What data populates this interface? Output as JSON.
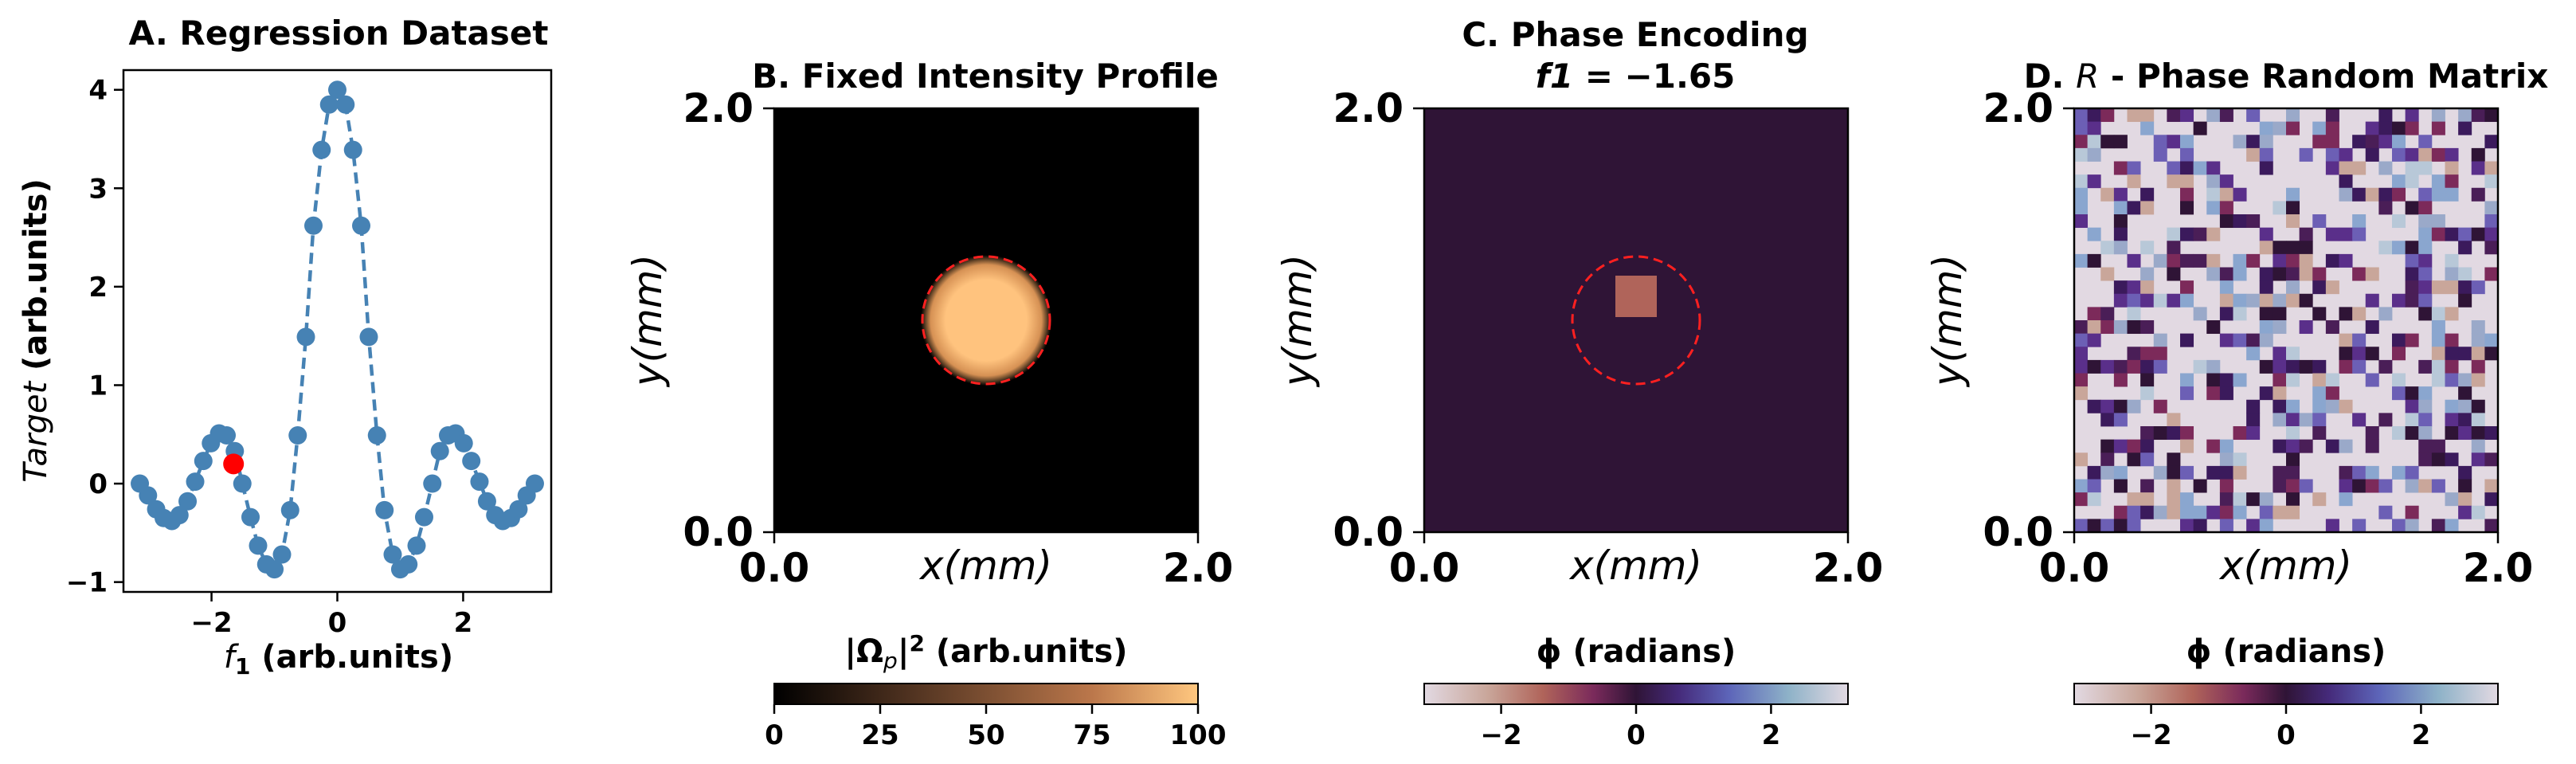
{
  "chart_data": [
    {
      "type": "line",
      "panel": "A",
      "title": "A. Regression Dataset",
      "xlabel_var": "f",
      "xlabel_sub": "1",
      "xlabel_rest": " (arb.units)",
      "ylabel_var": "Target",
      "ylabel_rest": " (arb.units)",
      "xlim": [
        -3.4,
        3.4
      ],
      "ylim": [
        -1.1,
        4.2
      ],
      "xticks": [
        -2,
        0,
        2
      ],
      "yticks": [
        -1,
        0,
        1,
        2,
        3,
        4
      ],
      "series": [
        {
          "name": "target",
          "color": "#4682b4",
          "style": "dashed-with-markers",
          "x": [
            -3.14,
            -3.01,
            -2.88,
            -2.76,
            -2.63,
            -2.51,
            -2.38,
            -2.26,
            -2.13,
            -2.01,
            -1.88,
            -1.76,
            -1.63,
            -1.51,
            -1.38,
            -1.26,
            -1.13,
            -1.0,
            -0.88,
            -0.75,
            -0.63,
            -0.5,
            -0.38,
            -0.25,
            -0.13,
            0.0,
            0.13,
            0.25,
            0.38,
            0.5,
            0.63,
            0.75,
            0.88,
            1.0,
            1.13,
            1.26,
            1.38,
            1.51,
            1.63,
            1.76,
            1.88,
            2.01,
            2.13,
            2.26,
            2.38,
            2.51,
            2.63,
            2.76,
            2.88,
            3.01,
            3.14
          ],
          "y": [
            0.0,
            -0.12,
            -0.26,
            -0.35,
            -0.38,
            -0.32,
            -0.18,
            0.02,
            0.23,
            0.41,
            0.51,
            0.49,
            0.33,
            0.0,
            -0.34,
            -0.63,
            -0.82,
            -0.87,
            -0.72,
            -0.27,
            0.49,
            1.49,
            2.62,
            3.39,
            3.85,
            4.0,
            3.85,
            3.39,
            2.62,
            1.49,
            0.49,
            -0.27,
            -0.72,
            -0.87,
            -0.82,
            -0.63,
            -0.34,
            0.0,
            0.33,
            0.49,
            0.51,
            0.41,
            0.23,
            0.02,
            -0.18,
            -0.32,
            -0.38,
            -0.35,
            -0.26,
            -0.12,
            0.0
          ]
        },
        {
          "name": "highlighted sample",
          "color": "#ff0000",
          "x": [
            -1.65
          ],
          "y": [
            0.2
          ]
        }
      ]
    },
    {
      "type": "heatmap",
      "panel": "B",
      "title": "B. Fixed Intensity Profile",
      "xlabel": "x(mm)",
      "ylabel": "y(mm)",
      "xlim": [
        0.0,
        2.0
      ],
      "ylim": [
        0.0,
        2.0
      ],
      "xtick_labels": [
        "0.0",
        "2.0"
      ],
      "ytick_labels": [
        "0.0",
        "2.0"
      ],
      "description_values": {
        "spot_center": [
          1.0,
          1.0
        ],
        "spot_radius_mm": 0.25,
        "dashed_circle_radius_mm": 0.3,
        "peak": 100
      },
      "colorbar": {
        "label": "|Ω_p|² (arb.units)",
        "label_main": "|Ω",
        "label_sub": "p",
        "label_sup": "2",
        "label_tail": " (arb.units)",
        "range": [
          0,
          100
        ],
        "ticks": [
          "0",
          "25",
          "50",
          "75",
          "100"
        ],
        "colormap": "copper"
      }
    },
    {
      "type": "heatmap",
      "panel": "C",
      "title": "C. Phase Encoding",
      "subtitle_var": "f1",
      "subtitle_rest": " = −1.65",
      "xlabel": "x(mm)",
      "ylabel": "y(mm)",
      "xlim": [
        0.0,
        2.0
      ],
      "ylim": [
        0.0,
        2.0
      ],
      "xtick_labels": [
        "0.0",
        "2.0"
      ],
      "ytick_labels": [
        "0.0",
        "2.0"
      ],
      "description_values": {
        "background_phase": 0.0,
        "square_phase": -1.65,
        "square_center": [
          1.0,
          1.08
        ],
        "square_half_width_mm": 0.1
      },
      "colorbar": {
        "label": "ϕ (radians)",
        "range": [
          -3.14,
          3.14
        ],
        "ticks": [
          "−2",
          "0",
          "2"
        ],
        "colormap": "twilight"
      }
    },
    {
      "type": "heatmap",
      "panel": "D",
      "title_prefix": "D. ",
      "title_var": "R",
      "title_rest": " - Phase Random Matrix",
      "xlabel": "x(mm)",
      "ylabel": "y(mm)",
      "xlim": [
        0.0,
        2.0
      ],
      "ylim": [
        0.0,
        2.0
      ],
      "xtick_labels": [
        "0.0",
        "2.0"
      ],
      "ytick_labels": [
        "0.0",
        "2.0"
      ],
      "grid_size": 32,
      "colorbar": {
        "label": "ϕ (radians)",
        "range": [
          -3.14,
          3.14
        ],
        "ticks": [
          "−2",
          "0",
          "2"
        ],
        "colormap": "twilight"
      }
    }
  ]
}
